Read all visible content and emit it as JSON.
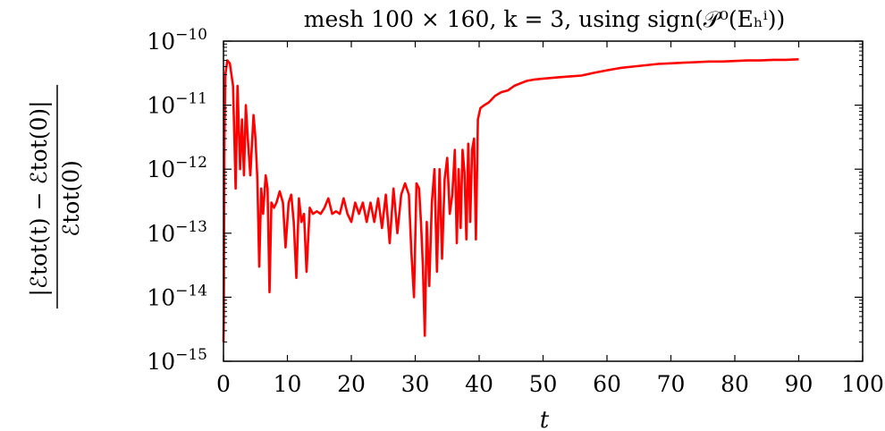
{
  "chart_data": {
    "type": "line",
    "title": "mesh 100 × 160, k = 3, using sign(𝒫⁰(Eₕⁱ))",
    "xlabel": "t",
    "ylabel_numerator": "|ℰtot(t) − ℰtot(0)|",
    "ylabel_denominator": "ℰtot(0)",
    "x_scale": "linear",
    "y_scale": "log",
    "xlim": [
      0,
      100
    ],
    "ylim": [
      1e-15,
      1e-10
    ],
    "x_ticks": [
      0,
      10,
      20,
      30,
      40,
      50,
      60,
      70,
      80,
      90,
      100
    ],
    "x_tick_labels": [
      "0",
      "10",
      "20",
      "30",
      "40",
      "50",
      "60",
      "70",
      "80",
      "90",
      "100"
    ],
    "y_ticks": [
      1e-15,
      1e-14,
      1e-13,
      1e-12,
      1e-11,
      1e-10
    ],
    "y_tick_labels": [
      {
        "base": "10",
        "exp": "−15"
      },
      {
        "base": "10",
        "exp": "−14"
      },
      {
        "base": "10",
        "exp": "−13"
      },
      {
        "base": "10",
        "exp": "−12"
      },
      {
        "base": "10",
        "exp": "−11"
      },
      {
        "base": "10",
        "exp": "−10"
      }
    ],
    "grid": false,
    "series": [
      {
        "color": "#ff0000",
        "x": [
          0,
          0.05,
          0.15,
          0.3,
          0.6,
          1.0,
          1.5,
          1.9,
          2.2,
          2.6,
          2.9,
          3.2,
          3.5,
          3.8,
          4.2,
          4.7,
          5.0,
          5.3,
          5.6,
          5.9,
          6.2,
          6.6,
          6.9,
          7.2,
          7.5,
          7.9,
          8.3,
          8.8,
          9.3,
          9.7,
          10.2,
          10.6,
          11.0,
          11.4,
          11.8,
          12.2,
          12.6,
          13.0,
          13.5,
          14.0,
          14.6,
          15.2,
          15.8,
          16.4,
          17.0,
          17.6,
          18.2,
          18.8,
          19.4,
          20.0,
          20.6,
          21.2,
          21.8,
          22.4,
          23.0,
          23.6,
          24.2,
          24.8,
          25.4,
          26.0,
          26.6,
          27.2,
          27.8,
          28.4,
          29.0,
          29.4,
          29.8,
          30.2,
          30.6,
          30.9,
          31.2,
          31.5,
          31.8,
          32.2,
          32.6,
          33.0,
          33.4,
          33.8,
          34.2,
          34.6,
          35.0,
          35.4,
          35.8,
          36.2,
          36.5,
          36.8,
          37.1,
          37.4,
          37.7,
          38.0,
          38.3,
          38.6,
          38.9,
          39.2,
          39.5,
          39.8,
          40.2,
          40.8,
          41.5,
          42.5,
          43.5,
          44.5,
          45.5,
          46.5,
          47.5,
          48.5,
          50.0,
          52.0,
          54.0,
          56.0,
          58.0,
          60.0,
          62.0,
          64.0,
          66.0,
          68.0,
          70.0,
          72.0,
          74.0,
          76.0,
          78.0,
          80.0,
          82.0,
          84.0,
          86.0,
          88.0,
          90.0
        ],
        "y": [
          2e-15,
          5e-15,
          3e-12,
          3e-11,
          5e-11,
          4.5e-11,
          2e-11,
          5e-13,
          2e-11,
          1e-12,
          6e-12,
          8e-13,
          1e-11,
          3e-12,
          8e-13,
          7e-12,
          3e-12,
          7e-13,
          3e-14,
          5e-13,
          2e-13,
          8e-13,
          5e-13,
          1.2e-14,
          3e-13,
          2.5e-13,
          3e-13,
          4.5e-13,
          3e-13,
          6e-14,
          3e-13,
          4e-13,
          1.5e-13,
          2e-14,
          3.5e-13,
          1.5e-13,
          2e-13,
          2.5e-14,
          2.5e-13,
          2e-13,
          2.2e-13,
          2e-13,
          2.5e-13,
          3.5e-13,
          2e-13,
          2.2e-13,
          2e-13,
          3.5e-13,
          2e-13,
          1.5e-13,
          3e-13,
          2e-13,
          3e-13,
          1.5e-13,
          3e-13,
          1.5e-13,
          3.5e-13,
          1.2e-13,
          4e-13,
          7e-14,
          5e-13,
          1e-13,
          4e-13,
          6e-13,
          4e-13,
          5e-14,
          1e-14,
          6e-13,
          5e-13,
          1.5e-13,
          3e-14,
          2.5e-15,
          1.5e-13,
          1.5e-14,
          3e-13,
          1e-12,
          2.5e-14,
          1e-12,
          4e-14,
          7e-13,
          1.5e-12,
          2e-13,
          4e-13,
          2e-12,
          7e-14,
          1e-12,
          1.2e-13,
          2e-12,
          9e-13,
          8e-14,
          2.5e-12,
          1.5e-13,
          2e-12,
          3e-12,
          8e-14,
          6e-12,
          9e-12,
          1e-11,
          1.1e-11,
          1.4e-11,
          1.6e-11,
          1.7e-11,
          2e-11,
          2.2e-11,
          2.4e-11,
          2.5e-11,
          2.6e-11,
          2.7e-11,
          2.8e-11,
          2.9e-11,
          3.2e-11,
          3.5e-11,
          3.8e-11,
          4e-11,
          4.2e-11,
          4.4e-11,
          4.5e-11,
          4.6e-11,
          4.7e-11,
          4.8e-11,
          4.8e-11,
          4.9e-11,
          5e-11,
          5e-11,
          5.1e-11,
          5.1e-11,
          5.2e-11
        ]
      }
    ]
  }
}
